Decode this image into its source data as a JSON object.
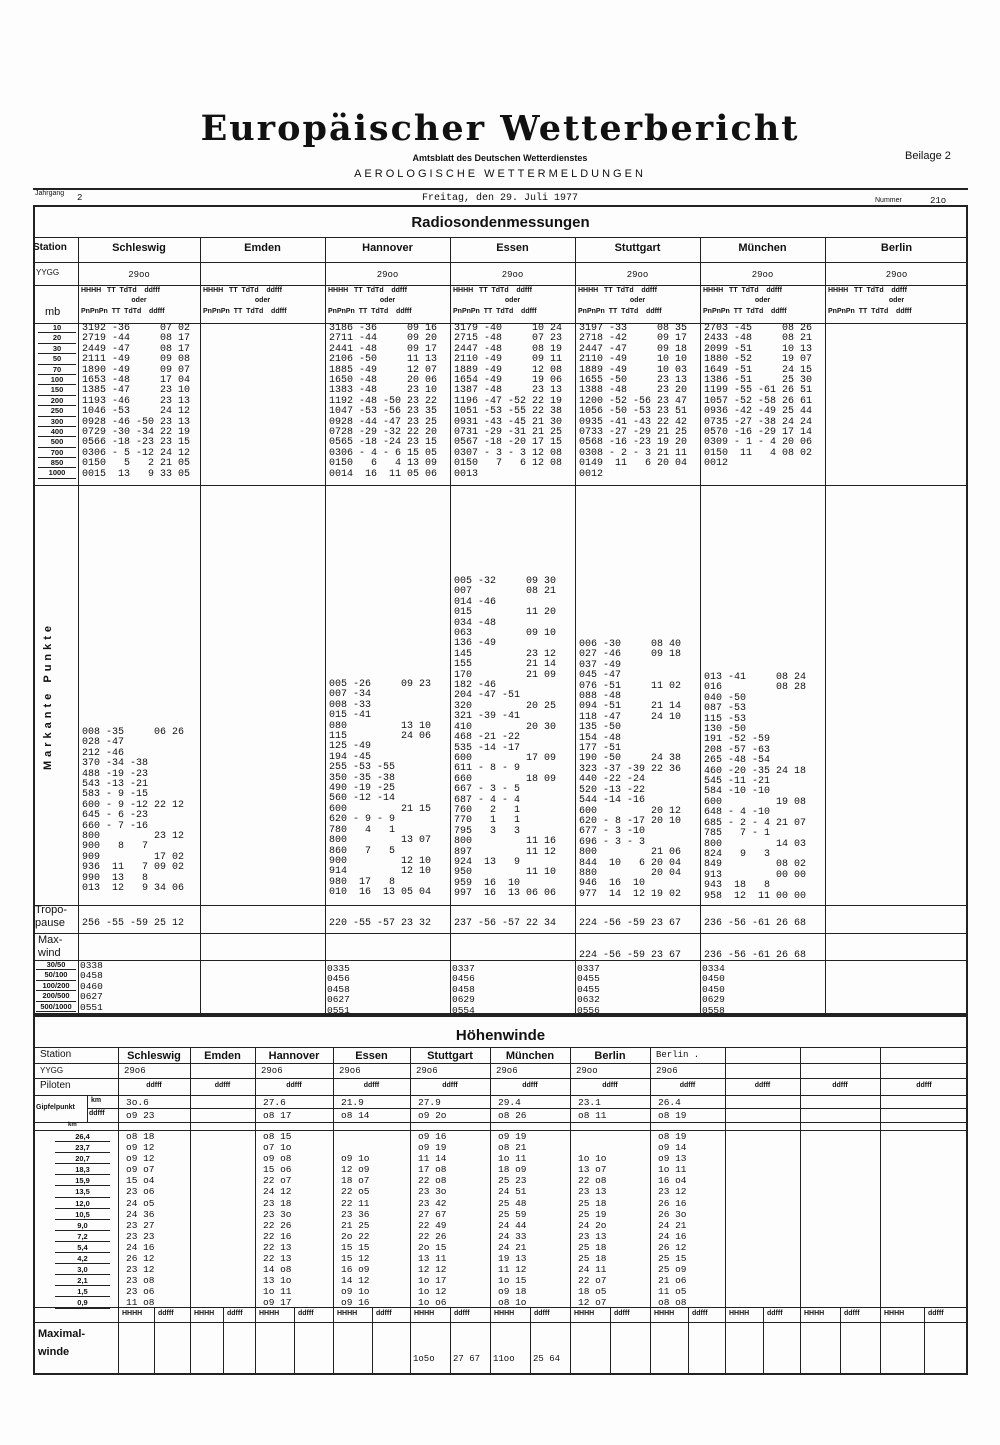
{
  "header": {
    "title": "Europäischer Wetterbericht",
    "subtitle": "Amtsblatt des Deutschen Wetterdienstes",
    "section": "AEROLOGISCHE WETTERMELDUNGEN",
    "beilage": "Beilage 2",
    "jahrgang_label": "Jahrgang",
    "jahrgang": "2",
    "date": "Freitag, den 29. Juli 1977",
    "nummer_label": "Nummer",
    "nummer": "21o"
  },
  "radio": {
    "title": "Radiosondenmessungen",
    "station_label": "Station",
    "yygg_label": "YYGG",
    "mb_label": "mb",
    "col_head1": "HHHH   TT  TdTd    ddfff",
    "col_oder": "oder",
    "col_head2": "PnPnPn  TT  TdTd    ddfff",
    "levels": [
      "10",
      "20",
      "30",
      "50",
      "70",
      "100",
      "150",
      "200",
      "250",
      "300",
      "400",
      "500",
      "700",
      "850",
      "1000"
    ],
    "markante_label": "Markante Punkte",
    "tropo_label": "Tropo-pause",
    "maxwind_label": "Max-wind",
    "layer_labels": [
      "30/50",
      "50/100",
      "100/200",
      "200/500",
      "500/1000"
    ],
    "stations": [
      {
        "name": "Schleswig",
        "yygg": "29oo",
        "main": [
          "3192 -36     07 02",
          "2719 -44     08 17",
          "2449 -47     08 17",
          "2111 -49     09 08",
          "1890 -49     09 07",
          "1653 -48     17 04",
          "1385 -47     23 10",
          "1193 -46     23 13",
          "1046 -53     24 12",
          "0928 -46 -50 23 13",
          "0729 -30 -34 22 19",
          "0566 -18 -23 23 15",
          "0306 - 5 -12 24 12",
          "0150   5   2 21 05",
          "0015  13   9 33 05"
        ],
        "markante": [
          "008 -35     06 26",
          "028 -47",
          "212 -46",
          "370 -34 -38",
          "488 -19 -23",
          "543 -13 -21",
          "583 - 9 -15",
          "600 - 9 -12 22 12",
          "645 - 6 -23",
          "660 - 7 -16",
          "800         23 12",
          "900   8   7",
          "909         17 02",
          "936  11   7 09 02",
          "990  13   8",
          "013  12   9 34 06"
        ],
        "tropo": "256 -55 -59 25 12",
        "maxwind": "",
        "layers": [
          "0338",
          "0458",
          "0460",
          "0627",
          "0551"
        ]
      },
      {
        "name": "Emden",
        "yygg": "",
        "main": [],
        "markante": [],
        "tropo": "",
        "maxwind": "",
        "layers": []
      },
      {
        "name": "Hannover",
        "yygg": "29oo",
        "main": [
          "3186 -36     09 16",
          "2711 -44     09 20",
          "2441 -48     09 17",
          "2106 -50     11 13",
          "1885 -49     12 07",
          "1650 -48     20 06",
          "1383 -48     23 10",
          "1192 -48 -50 23 22",
          "1047 -53 -56 23 35",
          "0928 -44 -47 23 25",
          "0728 -29 -32 22 20",
          "0565 -18 -24 23 15",
          "0306 - 4 - 6 15 05",
          "0150   6   4 13 09",
          "0014  16  11 05 06"
        ],
        "markante": [
          "005 -26     09 23",
          "007 -34",
          "008 -33",
          "015 -41",
          "080         13 10",
          "115         24 06",
          "125 -49",
          "194 -45",
          "255 -53 -55",
          "350 -35 -38",
          "490 -19 -25",
          "560 -12 -14",
          "600         21 15",
          "620 - 9 - 9",
          "780   4   1",
          "800         13 07",
          "860   7   5",
          "900         12 10",
          "914         12 10",
          "980  17   8",
          "010  16  13 05 04"
        ],
        "tropo": "220 -55 -57 23 32",
        "maxwind": "",
        "layers": [
          "0335",
          "0456",
          "0458",
          "0627",
          "0551"
        ]
      },
      {
        "name": "Essen",
        "yygg": "29oo",
        "main": [
          "3179 -40     10 24",
          "2715 -48     07 23",
          "2447 -48     08 19",
          "2110 -49     09 11",
          "1889 -49     12 08",
          "1654 -49     19 06",
          "1387 -48     23 13",
          "1196 -47 -52 22 19",
          "1051 -53 -55 22 38",
          "0931 -43 -45 21 30",
          "0731 -29 -31 21 25",
          "0567 -18 -20 17 15",
          "0307 - 3 - 3 12 08",
          "0150   7   6 12 08",
          "0013"
        ],
        "markante": [
          "005 -32     09 30",
          "007         08 21",
          "014 -46",
          "015         11 20",
          "034 -48",
          "063         09 10",
          "136 -49",
          "145         23 12",
          "155         21 14",
          "170         21 09",
          "182 -46",
          "204 -47 -51",
          "320         20 25",
          "321 -39 -41",
          "410         20 30",
          "468 -21 -22",
          "535 -14 -17",
          "600         17 09",
          "611 - 8 - 9",
          "660         18 09",
          "667 - 3 - 5",
          "687 - 4 - 4",
          "760   2   1",
          "770   1   1",
          "795   3   3",
          "800         11 16",
          "897         11 12",
          "924  13   9",
          "950         11 10",
          "959  16  10",
          "997  16  13 06 06"
        ],
        "tropo": "237 -56 -57 22 34",
        "maxwind": "",
        "layers": [
          "0337",
          "0456",
          "0458",
          "0629",
          "0554"
        ]
      },
      {
        "name": "Stuttgart",
        "yygg": "29oo",
        "main": [
          "3197 -33     08 35",
          "2718 -42     09 17",
          "2447 -47     09 18",
          "2110 -49     10 10",
          "1889 -49     10 03",
          "1655 -50     23 13",
          "1388 -48     23 20",
          "1200 -52 -56 23 47",
          "1056 -50 -53 23 51",
          "0935 -41 -43 22 42",
          "0733 -27 -29 21 25",
          "0568 -16 -23 19 20",
          "0308 - 2 - 3 21 11",
          "0149  11   6 20 04",
          "0012"
        ],
        "markante": [
          "006 -30     08 40",
          "027 -46     09 18",
          "037 -49",
          "045 -47",
          "076 -51     11 02",
          "088 -48",
          "094 -51     21 14",
          "118 -47     24 10",
          "135 -50",
          "154 -48",
          "177 -51",
          "190 -50     24 38",
          "323 -37 -39 22 36",
          "440 -22 -24",
          "520 -13 -22",
          "544 -14 -16",
          "600         20 12",
          "620 - 8 -17 20 10",
          "677 - 3 -10",
          "696 - 3 - 3",
          "800         21 06",
          "844  10   6 20 04",
          "880         20 04",
          "946  16  10",
          "977  14  12 19 02"
        ],
        "tropo": "224 -56 -59 23 67",
        "maxwind": "224 -56 -59 23 67",
        "layers": [
          "0337",
          "0455",
          "0455",
          "0632",
          "0556"
        ]
      },
      {
        "name": "München",
        "yygg": "29oo",
        "main": [
          "",
          "2703 -45     08 26",
          "2433 -48     08 21",
          "2099 -51     10 13",
          "1880 -52     19 07",
          "1649 -51     24 15",
          "1386 -51     25 30",
          "1199 -55 -61 26 51",
          "1057 -52 -58 26 61",
          "0936 -42 -49 25 44",
          "0735 -27 -38 24 24",
          "0570 -16 -29 17 14",
          "0309 - 1 - 4 20 06",
          "0150  11   4 08 02",
          "0012"
        ],
        "markante": [
          "013 -41     08 24",
          "016         08 28",
          "040 -50",
          "087 -53",
          "115 -53",
          "130 -50",
          "191 -52 -59",
          "208 -57 -63",
          "265 -48 -54",
          "460 -20 -35 24 18",
          "545 -11 -21",
          "584 -10 -10",
          "600         19 08",
          "648 - 4 -10",
          "685 - 2 - 4 21 07",
          "785   7 - 1",
          "800         14 03",
          "824   9   3",
          "849         08 02",
          "913         00 00",
          "943  18   8",
          "958  12  11 00 00"
        ],
        "tropo": "236 -56 -61 26 68",
        "maxwind": "236 -56 -61 26 68",
        "layers": [
          "0334",
          "0450",
          "0450",
          "0629",
          "0558"
        ]
      },
      {
        "name": "Berlin",
        "yygg": "29oo",
        "main": [],
        "markante": [],
        "tropo": "",
        "maxwind": "",
        "layers": []
      }
    ]
  },
  "hoehen": {
    "title": "Höhenwinde",
    "station_label": "Station",
    "yygg_label": "YYGG",
    "piloten_label": "Piloten",
    "gipfel_label": "Gipfelpunkt",
    "km_label": "km",
    "ddfff_label": "ddfff",
    "hhhh_label": "HHHH",
    "maximal_label": "Maximal-winde",
    "levels": [
      "26,4",
      "23,7",
      "20,7",
      "18,3",
      "15,9",
      "13,5",
      "12,0",
      "10,5",
      "9,0",
      "7,2",
      "5,4",
      "4,2",
      "3,0",
      "2,1",
      "1,5",
      "0,9"
    ],
    "columns": [
      {
        "name": "Schleswig",
        "yygg": "29o6",
        "gipfel_km": "3o.6",
        "gipfel_ddfff": "o9 23",
        "winds": [
          "o8 18",
          "o9 12",
          "o9 12",
          "o9 o7",
          "15 o4",
          "23 o6",
          "24 o5",
          "24 36",
          "23 27",
          "23 23",
          "24 16",
          "26 12",
          "23 12",
          "23 o8",
          "23 o6",
          "11 o8"
        ],
        "max_hhhh": "",
        "max_ddfff": ""
      },
      {
        "name": "Emden",
        "yygg": "",
        "gipfel_km": "",
        "gipfel_ddfff": "",
        "winds": [],
        "max_hhhh": "",
        "max_ddfff": ""
      },
      {
        "name": "Hannover",
        "yygg": "29o6",
        "gipfel_km": "27.6",
        "gipfel_ddfff": "o8 17",
        "winds": [
          "o8 15",
          "o7 1o",
          "o9 o8",
          "15 o6",
          "22 o7",
          "24 12",
          "23 18",
          "23 3o",
          "22 26",
          "22 16",
          "22 13",
          "22 13",
          "14 o8",
          "13 1o",
          "1o 11",
          "o9 17"
        ],
        "max_hhhh": "",
        "max_ddfff": ""
      },
      {
        "name": "Essen",
        "yygg": "29o6",
        "gipfel_km": "21.9",
        "gipfel_ddfff": "o8 14",
        "winds": [
          "",
          "",
          "o9 1o",
          "12 o9",
          "18 o7",
          "22 o5",
          "22 11",
          "23 36",
          "21 25",
          "2o 22",
          "15 15",
          "15 12",
          "16 o9",
          "14 12",
          "o9 1o",
          "o9 16"
        ],
        "max_hhhh": "",
        "max_ddfff": ""
      },
      {
        "name": "Stuttgart",
        "yygg": "29o6",
        "gipfel_km": "27.9",
        "gipfel_ddfff": "o9 2o",
        "winds": [
          "o9 16",
          "o9 19",
          "11 14",
          "17 o8",
          "22 o8",
          "23 3o",
          "23 42",
          "27 67",
          "22 49",
          "22 26",
          "2o 15",
          "13 11",
          "12 12",
          "1o 17",
          "1o 12",
          "1o o6"
        ],
        "max_hhhh": "1o5o",
        "max_ddfff": "27 67"
      },
      {
        "name": "München",
        "yygg": "29o6",
        "gipfel_km": "29.4",
        "gipfel_ddfff": "o8 26",
        "winds": [
          "o9 19",
          "o8 21",
          "1o 11",
          "18 o9",
          "25 23",
          "24 51",
          "25 48",
          "25 59",
          "24 44",
          "24 33",
          "24 21",
          "19 13",
          "11 12",
          "1o 15",
          "o9 18",
          "o8 1o"
        ],
        "max_hhhh": "11oo",
        "max_ddfff": "25 64"
      },
      {
        "name": "Berlin",
        "yygg": "29oo",
        "gipfel_km": "23.1",
        "gipfel_ddfff": "o8 11",
        "winds": [
          "",
          "",
          "1o 1o",
          "13 o7",
          "22 o8",
          "23 13",
          "25 18",
          "25 19",
          "24 2o",
          "23 13",
          "25 18",
          "25 18",
          "24 11",
          "22 o7",
          "18 o5",
          "12 o7"
        ],
        "max_hhhh": "",
        "max_ddfff": ""
      },
      {
        "name": "Berlin .",
        "typed": true,
        "yygg": "29o6",
        "gipfel_km": "26.4",
        "gipfel_ddfff": "o8 19",
        "winds": [
          "o8 19",
          "o9 14",
          "o9 13",
          "1o 11",
          "16 o4",
          "23 12",
          "26 16",
          "26 3o",
          "24 21",
          "24 16",
          "26 12",
          "25 15",
          "25 o9",
          "21 o6",
          "11 o5",
          "o8 o8"
        ],
        "max_hhhh": "",
        "max_ddfff": ""
      },
      {
        "name": "",
        "yygg": "",
        "gipfel_km": "",
        "gipfel_ddfff": "",
        "winds": [],
        "max_hhhh": "",
        "max_ddfff": ""
      },
      {
        "name": "",
        "yygg": "",
        "gipfel_km": "",
        "gipfel_ddfff": "",
        "winds": [],
        "max_hhhh": "",
        "max_ddfff": ""
      },
      {
        "name": "",
        "yygg": "",
        "gipfel_km": "",
        "gipfel_ddfff": "",
        "winds": [],
        "max_hhhh": "",
        "max_ddfff": ""
      }
    ]
  }
}
